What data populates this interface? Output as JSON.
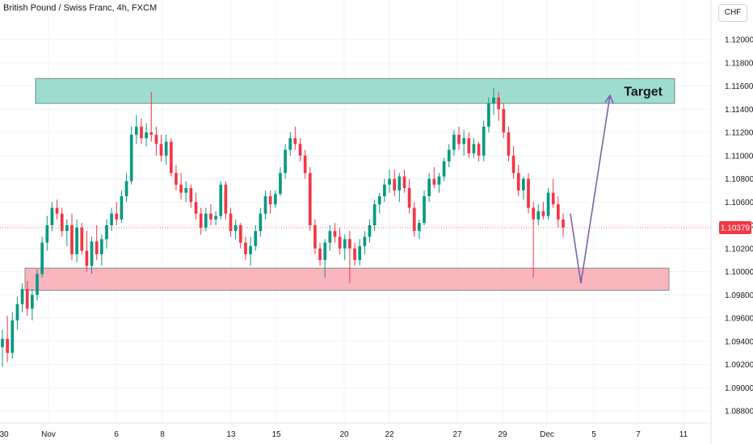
{
  "header": {
    "title": "British Pound / Swiss Franc, 4h, FXCM",
    "currency_button": "CHF"
  },
  "colors": {
    "up": "#089981",
    "down": "#f23645",
    "target_zone": "#9fdcd0",
    "support_zone": "#f9b6bf",
    "arrow": "#7b63a8",
    "price_line": "#f23645"
  },
  "chart_data": {
    "type": "candlestick",
    "symbol": "GBPCHF",
    "timeframe": "4h",
    "current_price": "1.10379",
    "y_axis": {
      "ticks": [
        "1.12000",
        "1.11800",
        "1.11600",
        "1.11400",
        "1.11200",
        "1.11000",
        "1.10800",
        "1.10600",
        "1.10400",
        "1.10200",
        "1.10000",
        "1.09800",
        "1.09600",
        "1.09400",
        "1.09200",
        "1.09000",
        "1.08800"
      ]
    },
    "x_axis": {
      "ticks": [
        "30",
        "Nov",
        "6",
        "8",
        "13",
        "15",
        "20",
        "22",
        "27",
        "29",
        "Dec",
        "5",
        "7",
        "11"
      ]
    },
    "zones": [
      {
        "label": "Target",
        "price_top": 1.11664,
        "price_bottom": 1.1145
      },
      {
        "label": "",
        "price_top": 1.1003,
        "price_bottom": 1.0984
      }
    ],
    "projection": [
      {
        "price": 1.105
      },
      {
        "price": 1.099
      },
      {
        "price": 1.1152
      }
    ],
    "candles": [
      [
        1.0935,
        1.095,
        1.0918,
        1.0942
      ],
      [
        1.0942,
        1.0962,
        1.0922,
        1.093
      ],
      [
        1.093,
        1.0965,
        1.0925,
        1.0958
      ],
      [
        1.0958,
        1.0978,
        1.095,
        1.0972
      ],
      [
        1.0972,
        1.099,
        1.0965,
        1.0985
      ],
      [
        1.0985,
        1.0992,
        1.0962,
        1.0968
      ],
      [
        1.0968,
        1.0985,
        1.0958,
        1.098
      ],
      [
        1.098,
        1.1002,
        1.0975,
        1.0998
      ],
      [
        1.0998,
        1.103,
        1.0995,
        1.1025
      ],
      [
        1.1025,
        1.1048,
        1.1018,
        1.104
      ],
      [
        1.104,
        1.106,
        1.1035,
        1.1055
      ],
      [
        1.1055,
        1.1062,
        1.1045,
        1.105
      ],
      [
        1.105,
        1.1055,
        1.103,
        1.1035
      ],
      [
        1.1035,
        1.1045,
        1.1022,
        1.104
      ],
      [
        1.104,
        1.105,
        1.101,
        1.1015
      ],
      [
        1.1015,
        1.1045,
        1.1008,
        1.1038
      ],
      [
        1.1038,
        1.1042,
        1.1015,
        1.1018
      ],
      [
        1.1018,
        1.1035,
        1.1,
        1.1005
      ],
      [
        1.1005,
        1.103,
        1.0998,
        1.1026
      ],
      [
        1.1026,
        1.104,
        1.101,
        1.1015
      ],
      [
        1.1015,
        1.1032,
        1.1005,
        1.1028
      ],
      [
        1.1028,
        1.1045,
        1.102,
        1.104
      ],
      [
        1.104,
        1.1055,
        1.1035,
        1.105
      ],
      [
        1.105,
        1.106,
        1.104,
        1.1045
      ],
      [
        1.1045,
        1.107,
        1.1042,
        1.1065
      ],
      [
        1.1065,
        1.1085,
        1.106,
        1.1078
      ],
      [
        1.1078,
        1.1125,
        1.1075,
        1.1118
      ],
      [
        1.1118,
        1.1135,
        1.111,
        1.1125
      ],
      [
        1.1125,
        1.1132,
        1.111,
        1.1115
      ],
      [
        1.1115,
        1.1128,
        1.1108,
        1.112
      ],
      [
        1.112,
        1.1155,
        1.1112,
        1.1118
      ],
      [
        1.1118,
        1.1125,
        1.11,
        1.111
      ],
      [
        1.111,
        1.1118,
        1.1095,
        1.11
      ],
      [
        1.11,
        1.1118,
        1.1092,
        1.1112
      ],
      [
        1.1112,
        1.1115,
        1.1082,
        1.1085
      ],
      [
        1.1085,
        1.1092,
        1.107,
        1.1075
      ],
      [
        1.1075,
        1.1085,
        1.1062,
        1.1068
      ],
      [
        1.1068,
        1.1078,
        1.106,
        1.1072
      ],
      [
        1.1072,
        1.1075,
        1.1055,
        1.106
      ],
      [
        1.106,
        1.1068,
        1.1045,
        1.105
      ],
      [
        1.105,
        1.1055,
        1.1032,
        1.1038
      ],
      [
        1.1038,
        1.1055,
        1.1035,
        1.105
      ],
      [
        1.105,
        1.1058,
        1.104,
        1.1045
      ],
      [
        1.1045,
        1.1052,
        1.104,
        1.1048
      ],
      [
        1.1048,
        1.1078,
        1.1045,
        1.1075
      ],
      [
        1.1075,
        1.1078,
        1.1045,
        1.105
      ],
      [
        1.105,
        1.1055,
        1.103,
        1.1035
      ],
      [
        1.1035,
        1.1045,
        1.1028,
        1.104
      ],
      [
        1.104,
        1.1042,
        1.102,
        1.1025
      ],
      [
        1.1025,
        1.103,
        1.101,
        1.1015
      ],
      [
        1.1015,
        1.103,
        1.1005,
        1.1022
      ],
      [
        1.1022,
        1.104,
        1.1018,
        1.1035
      ],
      [
        1.1035,
        1.1055,
        1.103,
        1.105
      ],
      [
        1.105,
        1.107,
        1.1045,
        1.1065
      ],
      [
        1.1065,
        1.107,
        1.105,
        1.1058
      ],
      [
        1.1058,
        1.107,
        1.1055,
        1.1067
      ],
      [
        1.1067,
        1.109,
        1.1065,
        1.1085
      ],
      [
        1.1085,
        1.111,
        1.108,
        1.1105
      ],
      [
        1.1105,
        1.112,
        1.11,
        1.1115
      ],
      [
        1.1115,
        1.1125,
        1.1105,
        1.111
      ],
      [
        1.111,
        1.1115,
        1.1095,
        1.11
      ],
      [
        1.11,
        1.1105,
        1.108,
        1.1085
      ],
      [
        1.1085,
        1.109,
        1.1035,
        1.104
      ],
      [
        1.104,
        1.1045,
        1.1015,
        1.102
      ],
      [
        1.102,
        1.1025,
        1.1005,
        1.101
      ],
      [
        1.101,
        1.1028,
        1.0995,
        1.1025
      ],
      [
        1.1025,
        1.104,
        1.1018,
        1.1035
      ],
      [
        1.1035,
        1.1042,
        1.1025,
        1.103
      ],
      [
        1.103,
        1.1038,
        1.1015,
        1.102
      ],
      [
        1.102,
        1.1032,
        1.101,
        1.1028
      ],
      [
        1.1028,
        1.1035,
        1.099,
        1.102
      ],
      [
        1.102,
        1.1025,
        1.1005,
        1.101
      ],
      [
        1.101,
        1.1028,
        1.1005,
        1.1022
      ],
      [
        1.1022,
        1.1035,
        1.1015,
        1.103
      ],
      [
        1.103,
        1.1045,
        1.1025,
        1.104
      ],
      [
        1.104,
        1.1062,
        1.1035,
        1.1058
      ],
      [
        1.1058,
        1.1068,
        1.105,
        1.1065
      ],
      [
        1.1065,
        1.108,
        1.106,
        1.1075
      ],
      [
        1.1075,
        1.1088,
        1.1068,
        1.108
      ],
      [
        1.108,
        1.1088,
        1.1065,
        1.107
      ],
      [
        1.107,
        1.1085,
        1.106,
        1.1082
      ],
      [
        1.1082,
        1.1088,
        1.1068,
        1.1072
      ],
      [
        1.1072,
        1.108,
        1.105,
        1.1055
      ],
      [
        1.1055,
        1.106,
        1.103,
        1.1035
      ],
      [
        1.1035,
        1.1045,
        1.1028,
        1.1042
      ],
      [
        1.1042,
        1.107,
        1.104,
        1.1065
      ],
      [
        1.1065,
        1.1085,
        1.106,
        1.108
      ],
      [
        1.108,
        1.109,
        1.1072,
        1.1075
      ],
      [
        1.1075,
        1.1085,
        1.1068,
        1.1082
      ],
      [
        1.1082,
        1.1098,
        1.1078,
        1.1095
      ],
      [
        1.1095,
        1.111,
        1.109,
        1.1105
      ],
      [
        1.1105,
        1.1122,
        1.11,
        1.1118
      ],
      [
        1.1118,
        1.1125,
        1.1105,
        1.111
      ],
      [
        1.111,
        1.1122,
        1.11,
        1.1115
      ],
      [
        1.1115,
        1.112,
        1.1098,
        1.1102
      ],
      [
        1.1102,
        1.1115,
        1.1098,
        1.111
      ],
      [
        1.111,
        1.1112,
        1.1095,
        1.11
      ],
      [
        1.11,
        1.113,
        1.1095,
        1.1125
      ],
      [
        1.1125,
        1.115,
        1.112,
        1.1145
      ],
      [
        1.1145,
        1.1158,
        1.1135,
        1.115
      ],
      [
        1.115,
        1.1155,
        1.113,
        1.114
      ],
      [
        1.114,
        1.1145,
        1.1115,
        1.112
      ],
      [
        1.112,
        1.1125,
        1.1095,
        1.11
      ],
      [
        1.11,
        1.1108,
        1.108,
        1.1085
      ],
      [
        1.1085,
        1.1092,
        1.1065,
        1.107
      ],
      [
        1.107,
        1.1082,
        1.1062,
        1.108
      ],
      [
        1.108,
        1.1085,
        1.105,
        1.1055
      ],
      [
        1.1055,
        1.106,
        1.0995,
        1.1045
      ],
      [
        1.1045,
        1.1058,
        1.104,
        1.1052
      ],
      [
        1.1052,
        1.106,
        1.1045,
        1.1048
      ],
      [
        1.1048,
        1.1072,
        1.1045,
        1.1068
      ],
      [
        1.1068,
        1.108,
        1.1055,
        1.1058
      ],
      [
        1.1058,
        1.1065,
        1.1038,
        1.1045
      ],
      [
        1.1045,
        1.105,
        1.103,
        1.1038
      ]
    ]
  }
}
